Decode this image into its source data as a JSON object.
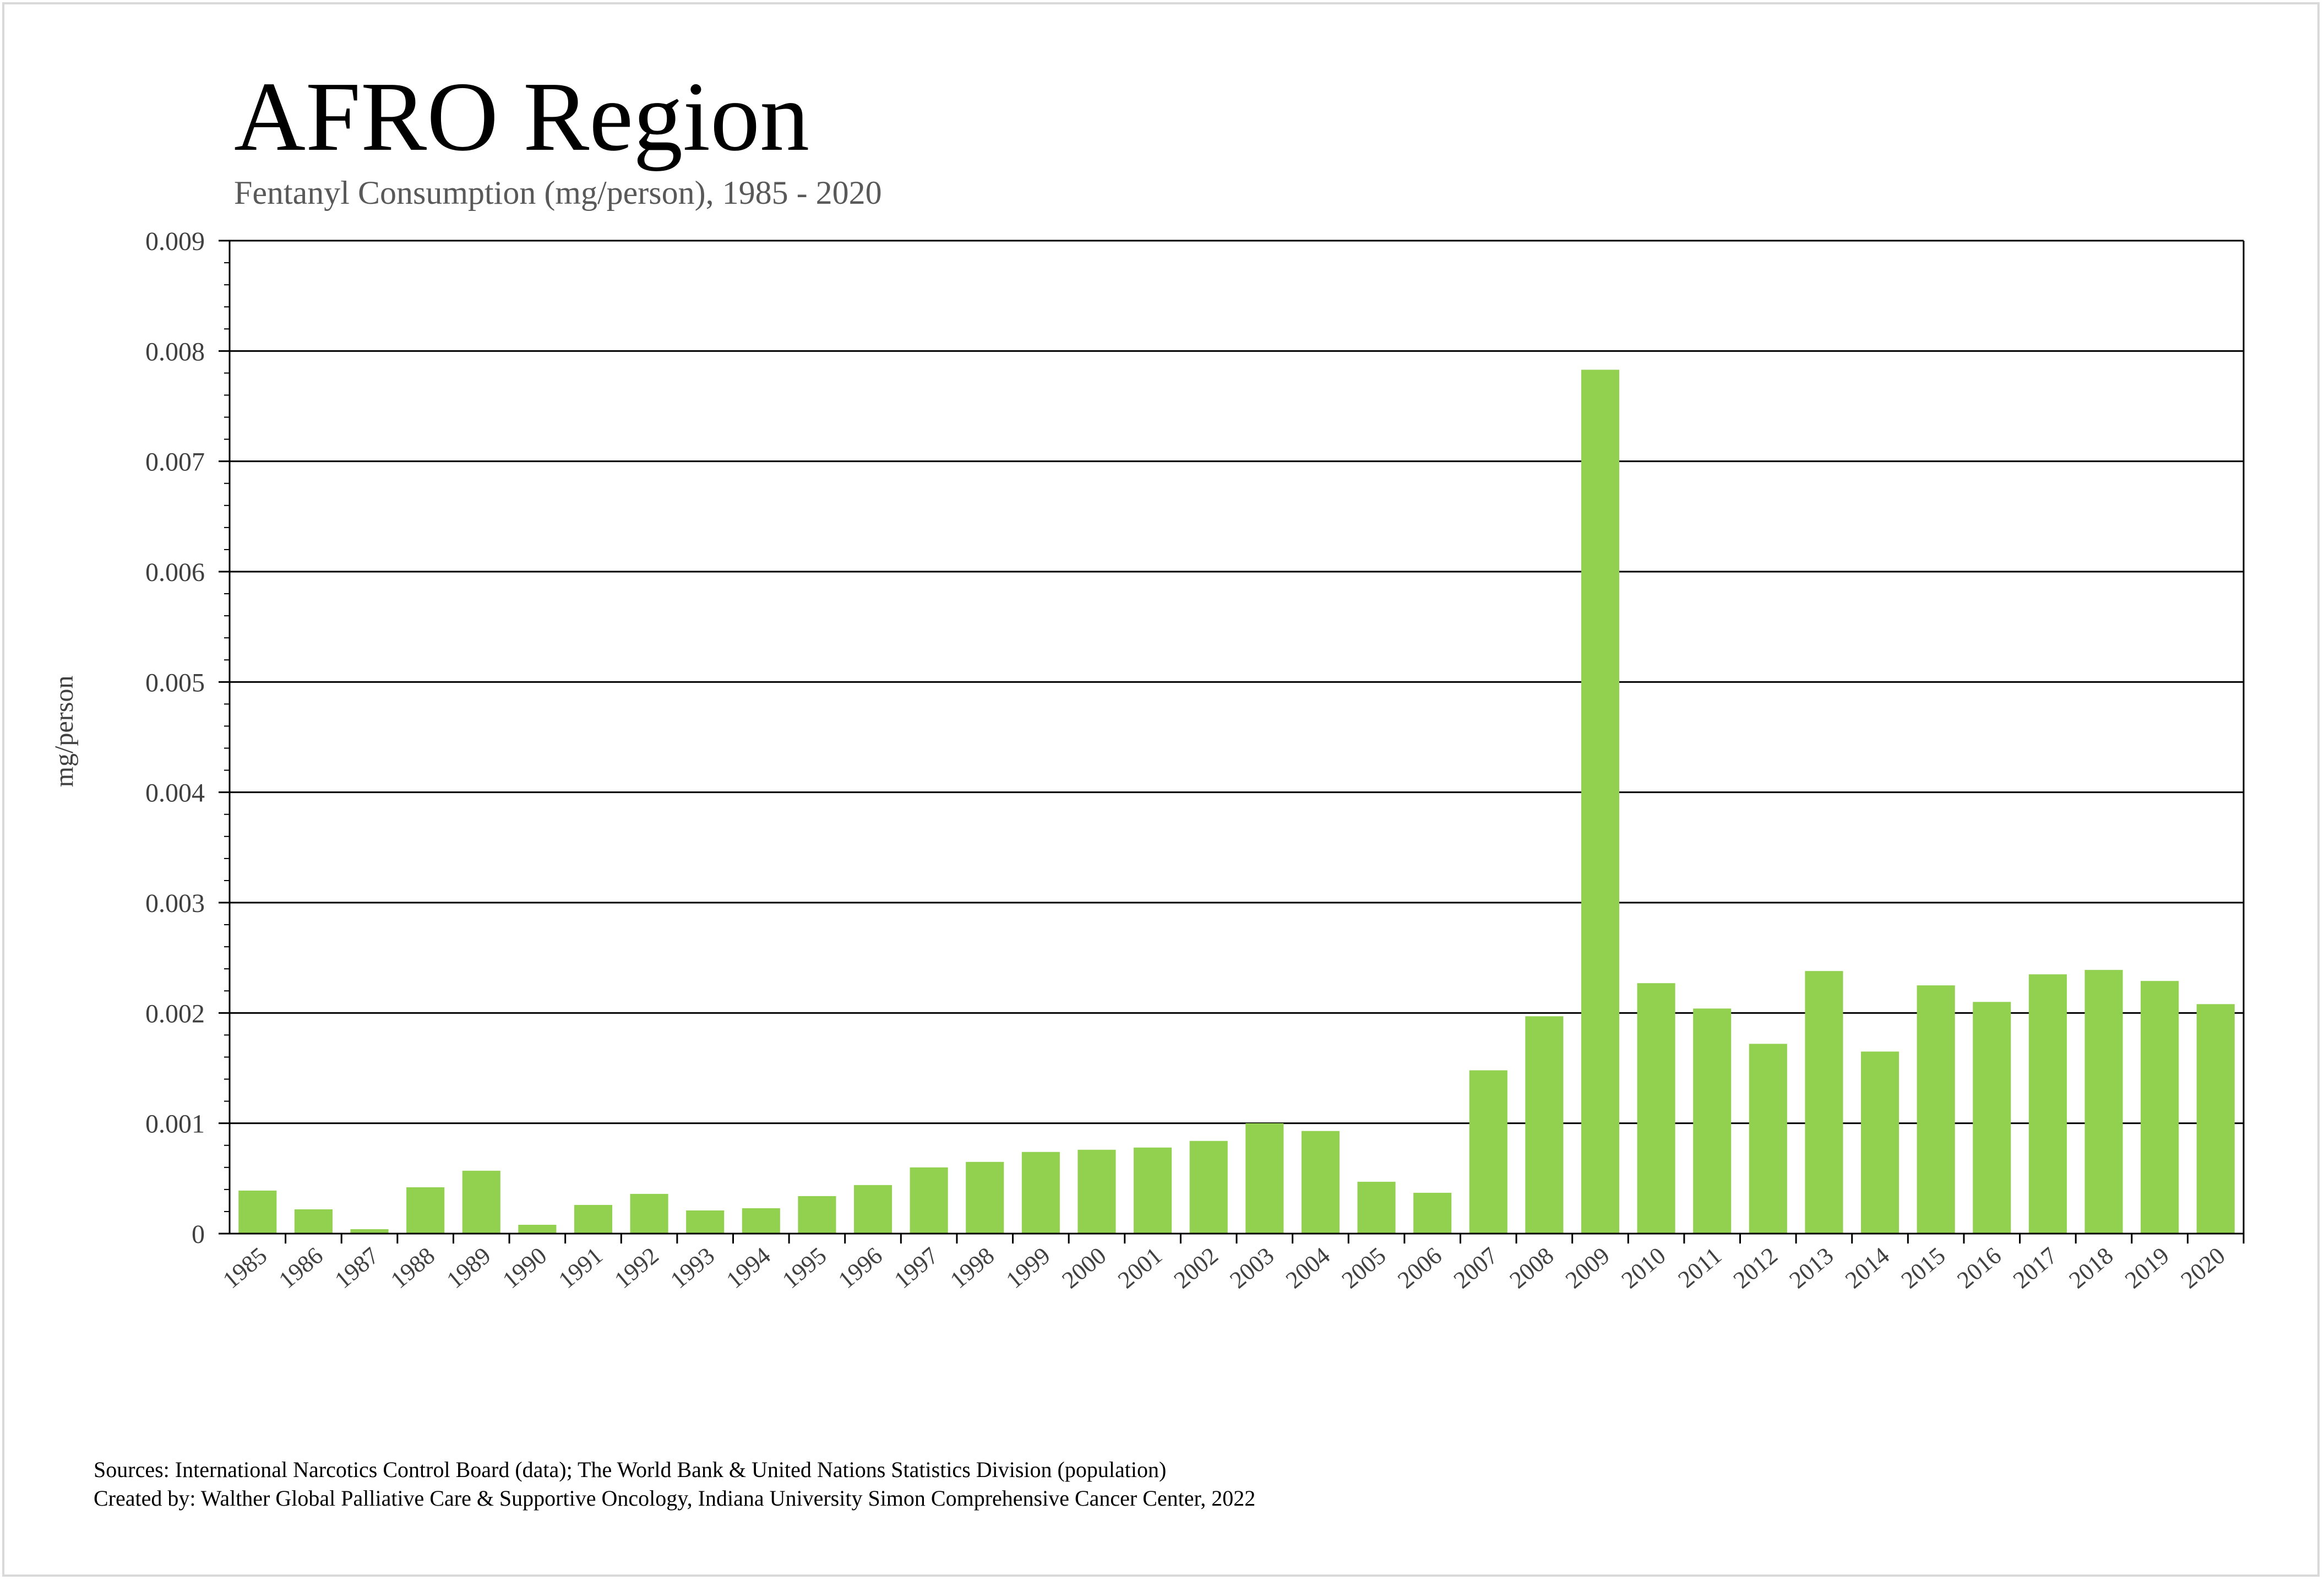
{
  "chart_data": {
    "type": "bar",
    "title": "AFRO Region",
    "subtitle": "Fentanyl Consumption (mg/person), 1985 - 2020",
    "xlabel": "",
    "ylabel": "mg/person",
    "ylim": [
      0,
      0.009
    ],
    "y_ticks": [
      "0",
      "0.001",
      "0.002",
      "0.003",
      "0.004",
      "0.005",
      "0.006",
      "0.007",
      "0.008",
      "0.009"
    ],
    "grid": true,
    "legend": "none",
    "bar_color": "#92d050",
    "categories": [
      "1985",
      "1986",
      "1987",
      "1988",
      "1989",
      "1990",
      "1991",
      "1992",
      "1993",
      "1994",
      "1995",
      "1996",
      "1997",
      "1998",
      "1999",
      "2000",
      "2001",
      "2002",
      "2003",
      "2004",
      "2005",
      "2006",
      "2007",
      "2008",
      "2009",
      "2010",
      "2011",
      "2012",
      "2013",
      "2014",
      "2015",
      "2016",
      "2017",
      "2018",
      "2019",
      "2020"
    ],
    "values": [
      0.00039,
      0.00022,
      4e-05,
      0.00042,
      0.00057,
      8e-05,
      0.00026,
      0.00036,
      0.00021,
      0.00023,
      0.00034,
      0.00044,
      0.0006,
      0.00065,
      0.00074,
      0.00076,
      0.00078,
      0.00084,
      0.001,
      0.00093,
      0.00047,
      0.00037,
      0.00148,
      0.00197,
      0.00783,
      0.00227,
      0.00204,
      0.00172,
      0.00238,
      0.00165,
      0.00225,
      0.0021,
      0.00235,
      0.00239,
      0.00229,
      0.00208
    ]
  },
  "footer": {
    "sources": "Sources: International Narcotics Control Board (data); The World Bank & United Nations Statistics Division (population)",
    "created_by": "Created by: Walther Global Palliative Care & Supportive Oncology, Indiana University Simon Comprehensive Cancer Center, 2022"
  }
}
